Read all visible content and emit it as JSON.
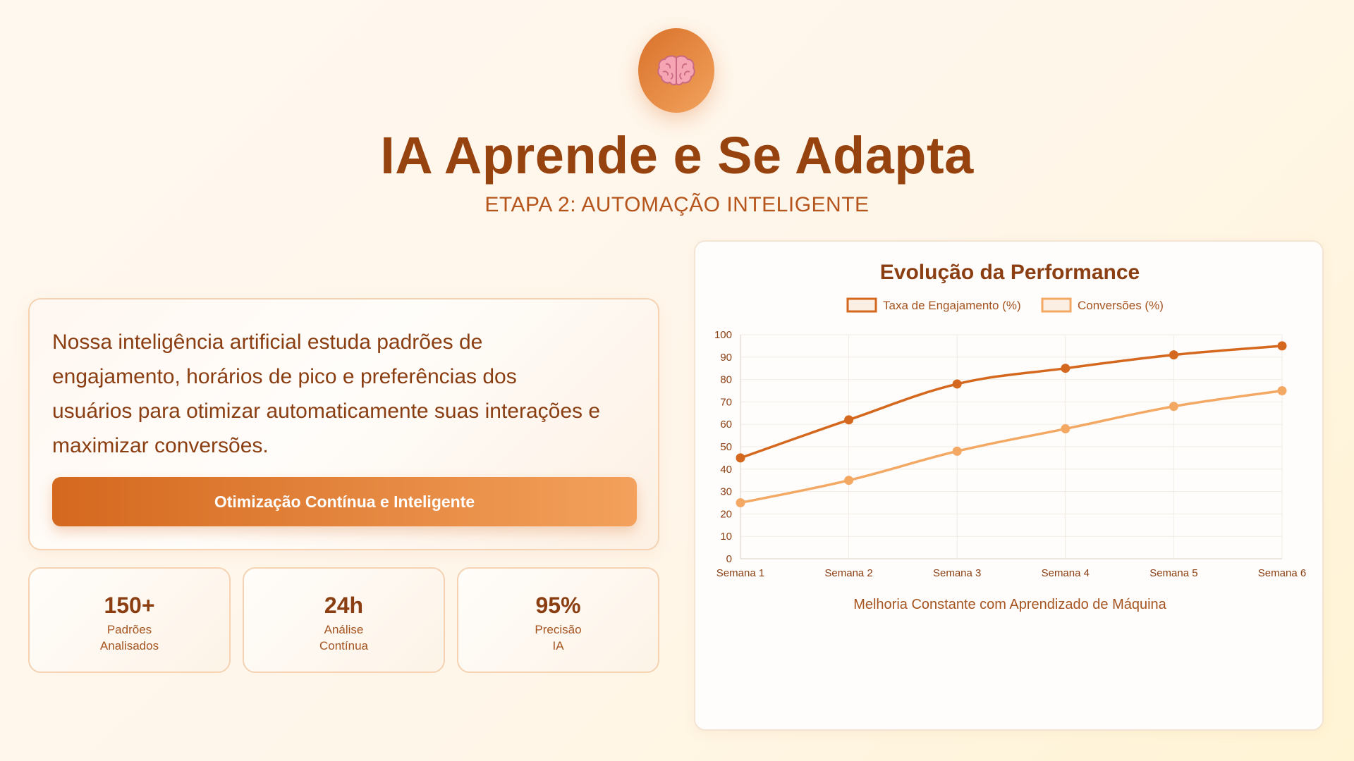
{
  "header": {
    "icon": "brain-icon",
    "title": "IA Aprende e Se Adapta",
    "subtitle": "ETAPA 2: AUTOMAÇÃO INTELIGENTE"
  },
  "description": {
    "lines": [
      "Nossa inteligência artificial estuda padrões de",
      "engajamento, horários de pico e preferências dos",
      "usuários para otimizar automaticamente suas interações e",
      "maximizar conversões."
    ],
    "button_label": "Otimização Contínua e Inteligente"
  },
  "stats": [
    {
      "value": "150+",
      "label_lines": [
        "Padrões",
        "Analisados"
      ]
    },
    {
      "value": "24h",
      "label_lines": [
        "Análise",
        "Contínua"
      ]
    },
    {
      "value": "95%",
      "label_lines": [
        "Precisão",
        "IA"
      ]
    }
  ],
  "colors": {
    "primary": "#d4681e",
    "secondary": "#f3a15c",
    "text_dark": "#8a3e12"
  },
  "chart_data": {
    "type": "line",
    "title": "Evolução da Performance",
    "categories": [
      "Semana 1",
      "Semana 2",
      "Semana 3",
      "Semana 4",
      "Semana 5",
      "Semana 6"
    ],
    "series": [
      {
        "name": "Taxa de Engajamento (%)",
        "values": [
          45,
          62,
          78,
          85,
          91,
          95
        ],
        "color": "#d4681e"
      },
      {
        "name": "Conversões (%)",
        "values": [
          25,
          35,
          48,
          58,
          68,
          75
        ],
        "color": "#f3a864"
      }
    ],
    "ylim": [
      0,
      100
    ],
    "yticks": [
      0,
      10,
      20,
      30,
      40,
      50,
      60,
      70,
      80,
      90,
      100
    ],
    "grid": true,
    "legend": "top",
    "caption": "Melhoria Constante com Aprendizado de Máquina"
  }
}
